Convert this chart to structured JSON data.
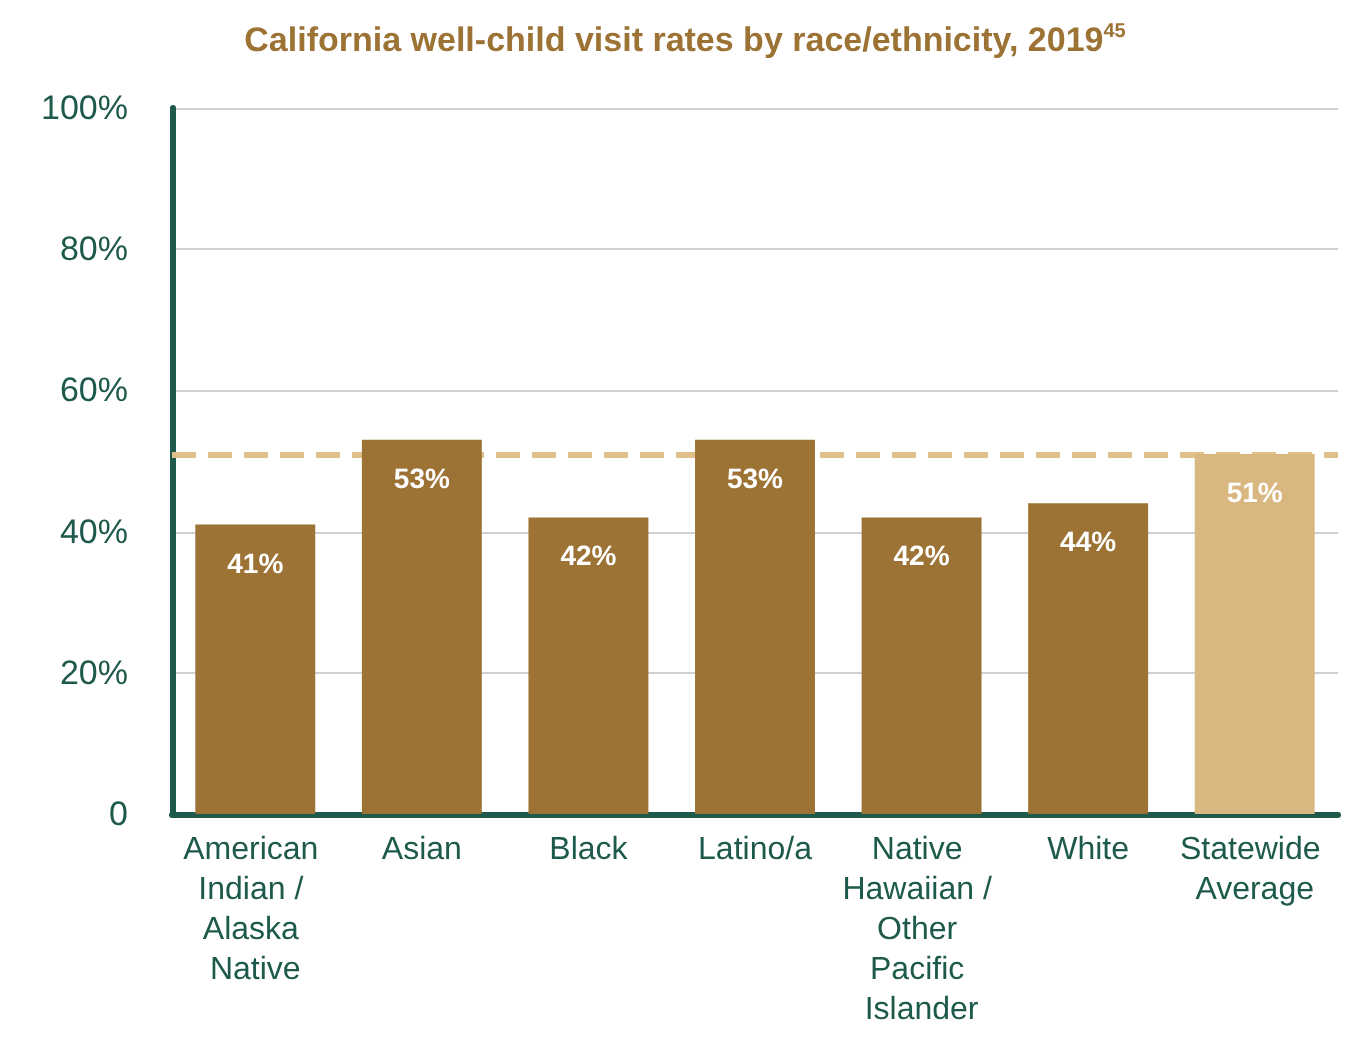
{
  "chart_data": {
    "type": "bar",
    "title": "California well-child visit rates by race/ethnicity, 2019$^{45}$",
    "categories": [
      "American Indian / Alaska Native",
      "Asian",
      "Black",
      "Latino/a",
      "Native Hawaiian / Other Pacific Islander",
      "White",
      "Statewide Average"
    ],
    "values": [
      41,
      53,
      42,
      53,
      42,
      44,
      51
    ],
    "colors": [
      "#9c7335",
      "#9c7335",
      "#9c7335",
      "#9c7335",
      "#9c7335",
      "#9c7335",
      "#d9b780"
    ],
    "value_labels": [
      "41%",
      "53%",
      "42%",
      "53%",
      "42%",
      "44%",
      "51%"
    ],
    "ylim": [
      0,
      100
    ],
    "yticks": [
      {
        "value": 0,
        "label": "0"
      },
      {
        "value": 20,
        "label": "20%"
      },
      {
        "value": 40,
        "label": "40%"
      },
      {
        "value": 60,
        "label": "60%"
      },
      {
        "value": 80,
        "label": "80%"
      },
      {
        "value": 100,
        "label": "100%"
      }
    ],
    "ref_lines": [
      {
        "axis": "y",
        "value": 51,
        "color": "#dfc08a",
        "line_style": "dashed"
      }
    ],
    "grid": "y"
  }
}
